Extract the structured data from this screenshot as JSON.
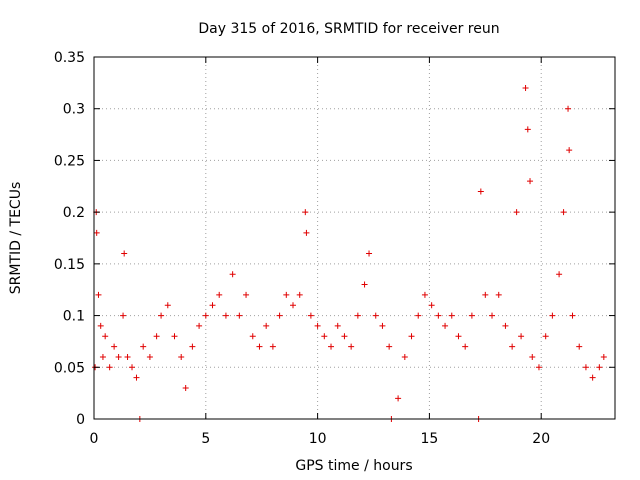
{
  "chart_data": {
    "type": "scatter",
    "title": "Day 315 of 2016, SRMTID for receiver reun",
    "xlabel": "GPS time / hours",
    "ylabel": "SRMTID / TECUs",
    "xlim": [
      0,
      23.3
    ],
    "ylim": [
      0,
      0.35
    ],
    "xticks": [
      0,
      5,
      10,
      15,
      20
    ],
    "xtick_labels": [
      "0",
      "5",
      "10",
      "15",
      "20"
    ],
    "yticks": [
      0,
      0.05,
      0.1,
      0.15,
      0.2,
      0.25,
      0.3,
      0.35
    ],
    "ytick_labels": [
      "0",
      "0.05",
      "0.1",
      "0.15",
      "0.2",
      "0.25",
      "0.3",
      "0.35"
    ],
    "grid": true,
    "marker": "plus",
    "color": "#e00000",
    "series": [
      {
        "name": "SRMTID",
        "points": [
          [
            0.05,
            0.05
          ],
          [
            0.1,
            0.2
          ],
          [
            0.12,
            0.18
          ],
          [
            0.2,
            0.12
          ],
          [
            0.3,
            0.09
          ],
          [
            0.4,
            0.06
          ],
          [
            0.5,
            0.08
          ],
          [
            0.7,
            0.05
          ],
          [
            0.9,
            0.07
          ],
          [
            1.1,
            0.06
          ],
          [
            1.3,
            0.1
          ],
          [
            1.35,
            0.16
          ],
          [
            1.5,
            0.06
          ],
          [
            1.7,
            0.05
          ],
          [
            1.9,
            0.04
          ],
          [
            2.05,
            0.0
          ],
          [
            2.2,
            0.07
          ],
          [
            2.5,
            0.06
          ],
          [
            2.8,
            0.08
          ],
          [
            3.0,
            0.1
          ],
          [
            3.3,
            0.11
          ],
          [
            3.6,
            0.08
          ],
          [
            3.9,
            0.06
          ],
          [
            4.1,
            0.03
          ],
          [
            4.4,
            0.07
          ],
          [
            4.7,
            0.09
          ],
          [
            5.0,
            0.1
          ],
          [
            5.3,
            0.11
          ],
          [
            5.6,
            0.12
          ],
          [
            5.9,
            0.1
          ],
          [
            6.2,
            0.14
          ],
          [
            6.5,
            0.1
          ],
          [
            6.8,
            0.12
          ],
          [
            7.1,
            0.08
          ],
          [
            7.4,
            0.07
          ],
          [
            7.7,
            0.09
          ],
          [
            8.0,
            0.07
          ],
          [
            8.3,
            0.1
          ],
          [
            8.6,
            0.12
          ],
          [
            8.9,
            0.11
          ],
          [
            9.2,
            0.12
          ],
          [
            9.45,
            0.2
          ],
          [
            9.5,
            0.18
          ],
          [
            9.7,
            0.1
          ],
          [
            10.0,
            0.09
          ],
          [
            10.3,
            0.08
          ],
          [
            10.6,
            0.07
          ],
          [
            10.9,
            0.09
          ],
          [
            11.2,
            0.08
          ],
          [
            11.5,
            0.07
          ],
          [
            11.8,
            0.1
          ],
          [
            12.1,
            0.13
          ],
          [
            12.3,
            0.16
          ],
          [
            12.6,
            0.1
          ],
          [
            12.9,
            0.09
          ],
          [
            13.2,
            0.07
          ],
          [
            13.3,
            0.0
          ],
          [
            13.6,
            0.02
          ],
          [
            13.9,
            0.06
          ],
          [
            14.2,
            0.08
          ],
          [
            14.5,
            0.1
          ],
          [
            14.8,
            0.12
          ],
          [
            15.1,
            0.11
          ],
          [
            15.4,
            0.1
          ],
          [
            15.7,
            0.09
          ],
          [
            16.0,
            0.1
          ],
          [
            16.3,
            0.08
          ],
          [
            16.6,
            0.07
          ],
          [
            16.9,
            0.1
          ],
          [
            17.2,
            0.0
          ],
          [
            17.3,
            0.22
          ],
          [
            17.5,
            0.12
          ],
          [
            17.8,
            0.1
          ],
          [
            18.1,
            0.12
          ],
          [
            18.4,
            0.09
          ],
          [
            18.7,
            0.07
          ],
          [
            18.9,
            0.2
          ],
          [
            19.1,
            0.08
          ],
          [
            19.3,
            0.32
          ],
          [
            19.4,
            0.28
          ],
          [
            19.5,
            0.23
          ],
          [
            19.6,
            0.06
          ],
          [
            19.9,
            0.05
          ],
          [
            20.2,
            0.08
          ],
          [
            20.5,
            0.1
          ],
          [
            20.8,
            0.14
          ],
          [
            21.0,
            0.2
          ],
          [
            21.2,
            0.3
          ],
          [
            21.25,
            0.26
          ],
          [
            21.4,
            0.1
          ],
          [
            21.7,
            0.07
          ],
          [
            22.0,
            0.05
          ],
          [
            22.3,
            0.04
          ],
          [
            22.6,
            0.05
          ],
          [
            22.8,
            0.06
          ]
        ]
      }
    ]
  }
}
